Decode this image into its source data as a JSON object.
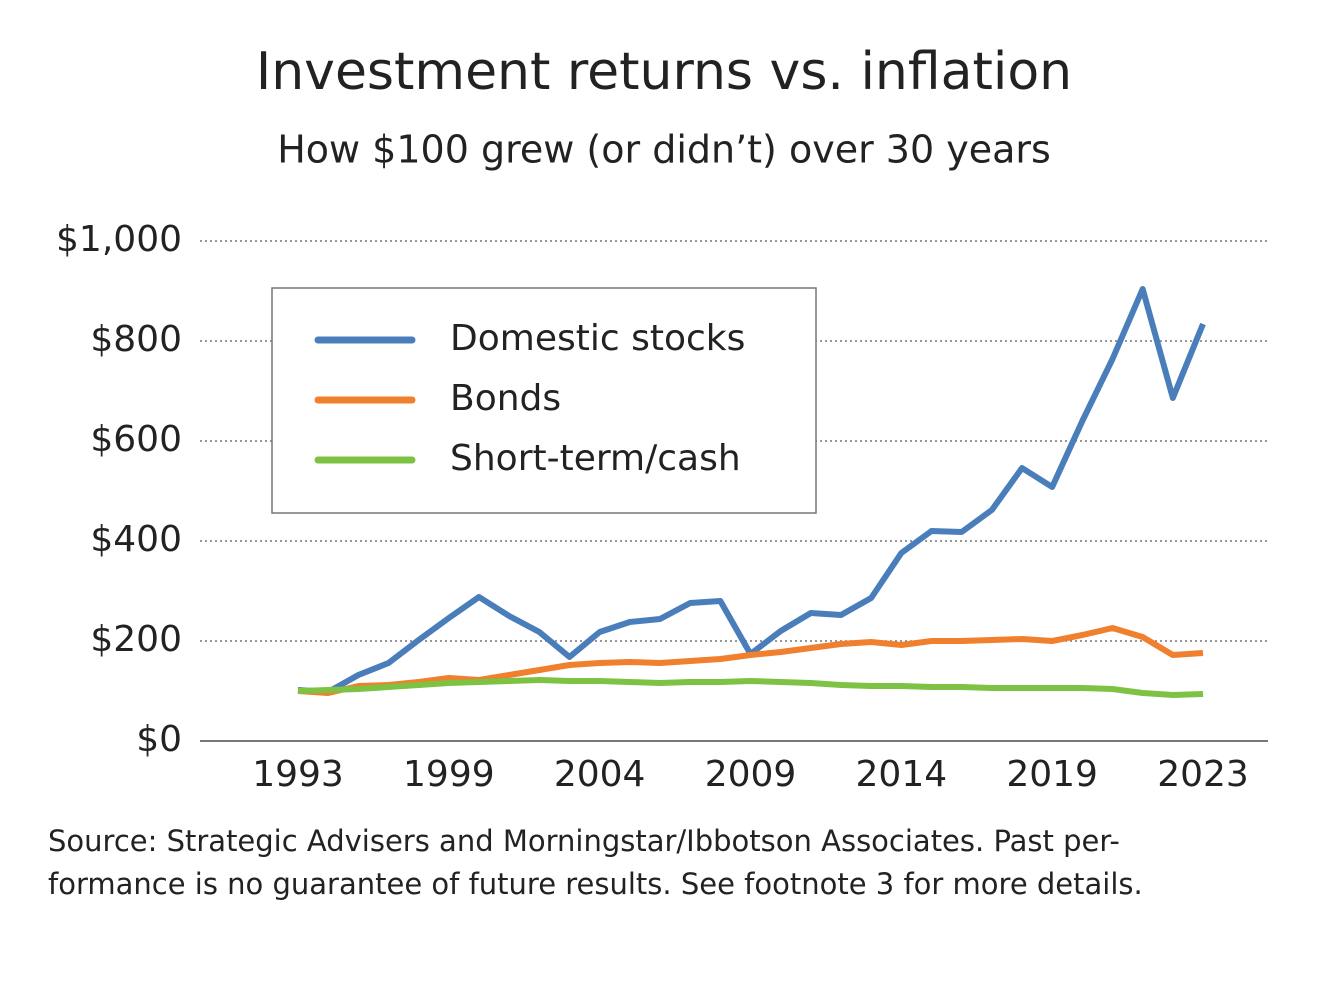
{
  "chart_data": {
    "type": "line",
    "title": "Investment returns vs. inflation",
    "subtitle": "How $100 grew (or didn’t) over 30 years",
    "categories": [
      "1993",
      null,
      null,
      null,
      null,
      "1999",
      null,
      null,
      null,
      null,
      "2004",
      null,
      null,
      null,
      null,
      "2009",
      null,
      null,
      null,
      null,
      "2014",
      null,
      null,
      null,
      null,
      "2019",
      null,
      null,
      null,
      null,
      "2023"
    ],
    "series": [
      {
        "name": "Domestic stocks",
        "color": "#4a7ebb",
        "values": [
          102,
          98,
          132,
          156,
          202,
          246,
          288,
          250,
          218,
          168,
          218,
          238,
          244,
          276,
          280,
          174,
          220,
          256,
          252,
          286,
          376,
          420,
          418,
          462,
          546,
          508,
          640,
          764,
          904,
          686,
          834
        ]
      },
      {
        "name": "Bonds",
        "color": "#f07f2e",
        "values": [
          100,
          96,
          110,
          112,
          118,
          126,
          122,
          132,
          142,
          152,
          156,
          158,
          156,
          160,
          164,
          172,
          178,
          186,
          194,
          198,
          192,
          200,
          200,
          202,
          204,
          200,
          212,
          226,
          208,
          172,
          176
        ]
      },
      {
        "name": "Short-term/cash",
        "color": "#7dc242",
        "values": [
          100,
          102,
          104,
          108,
          112,
          116,
          118,
          120,
          122,
          120,
          120,
          118,
          116,
          118,
          118,
          120,
          118,
          116,
          112,
          110,
          110,
          108,
          108,
          106,
          106,
          106,
          106,
          104,
          96,
          92,
          94
        ]
      }
    ],
    "ylim": [
      0,
      1000
    ],
    "yticks": [
      {
        "value": 0,
        "label": "$0"
      },
      {
        "value": 200,
        "label": "$200"
      },
      {
        "value": 400,
        "label": "$400"
      },
      {
        "value": 600,
        "label": "$600"
      },
      {
        "value": 800,
        "label": "$800"
      },
      {
        "value": 1000,
        "label": "$1,000"
      }
    ],
    "grid": true,
    "legend": "upper left",
    "source": [
      "Source: Strategic Advisers and Morningstar/Ibbotson Associates. Past per-",
      "formance is no guarantee of future results. See footnote 3 for more details."
    ]
  }
}
